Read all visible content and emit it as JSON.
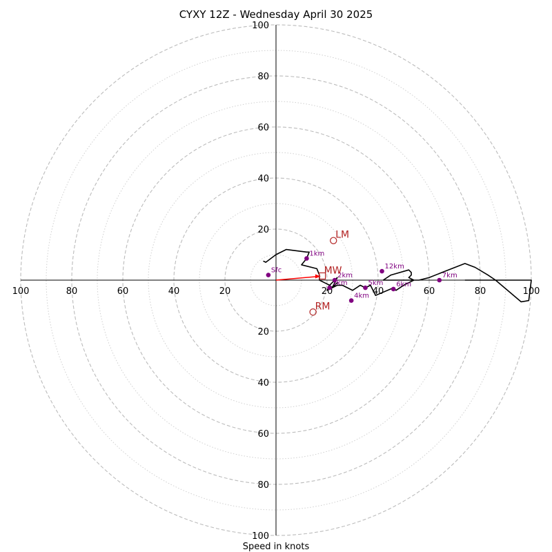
{
  "chart_data": {
    "type": "hodograph",
    "title": "CYXY 12Z - Wednesday April 30 2025",
    "xlabel": "Speed in knots",
    "range": [
      -100,
      100
    ],
    "tick_labels": {
      "left": [
        "100",
        "80",
        "60",
        "40",
        "20"
      ],
      "right": [
        "20",
        "40",
        "60",
        "80",
        "100"
      ],
      "top": [
        "100",
        "80",
        "60",
        "40",
        "20"
      ],
      "bottom": [
        "20",
        "40",
        "60",
        "80",
        "100"
      ]
    },
    "tick_values": [
      20,
      40,
      60,
      80,
      100
    ],
    "major_rings": [
      20,
      40,
      60,
      80,
      100
    ],
    "minor_rings": [
      10,
      30,
      50,
      70,
      90
    ],
    "grid": true,
    "hodograph_line": [
      [
        -5,
        7.5
      ],
      [
        -4,
        7
      ],
      [
        0,
        10
      ],
      [
        4,
        12
      ],
      [
        12,
        11
      ],
      [
        13,
        11
      ],
      [
        12,
        8.5
      ],
      [
        10,
        6
      ],
      [
        16,
        4.5
      ],
      [
        17,
        2
      ],
      [
        17,
        0
      ],
      [
        19,
        -1
      ],
      [
        21,
        -2
      ],
      [
        22,
        -1
      ],
      [
        23,
        0
      ],
      [
        24,
        1
      ],
      [
        22,
        -3
      ],
      [
        24,
        -1
      ],
      [
        23,
        -2
      ],
      [
        20,
        -4
      ],
      [
        21,
        -2
      ],
      [
        22,
        -3
      ],
      [
        24,
        -2
      ],
      [
        26,
        -2
      ],
      [
        30,
        -4
      ],
      [
        33,
        -2
      ],
      [
        35,
        -3
      ],
      [
        37,
        -2
      ],
      [
        39,
        -6
      ],
      [
        46,
        -3
      ],
      [
        47,
        -4
      ],
      [
        50,
        -2
      ],
      [
        52,
        -1
      ],
      [
        54,
        0
      ],
      [
        52,
        1
      ],
      [
        53,
        2
      ],
      [
        53,
        3
      ],
      [
        52,
        4
      ],
      [
        45,
        2
      ],
      [
        42,
        0
      ],
      [
        48,
        0
      ],
      [
        56,
        0
      ],
      [
        60,
        1
      ],
      [
        65,
        3
      ],
      [
        74,
        6.5
      ],
      [
        78,
        5
      ],
      [
        83,
        2
      ],
      [
        86,
        0
      ],
      [
        100,
        0
      ],
      [
        99,
        -8
      ],
      [
        96,
        -8.5
      ],
      [
        86,
        0
      ],
      [
        74,
        0
      ]
    ],
    "height_markers": [
      {
        "label": "Sfc",
        "u": -3,
        "v": 2
      },
      {
        "label": "1km",
        "u": 12,
        "v": 8.5
      },
      {
        "label": "2km",
        "u": 23,
        "v": 0
      },
      {
        "label": "3km",
        "u": 21,
        "v": -3
      },
      {
        "label": "4km",
        "u": 29.5,
        "v": -8
      },
      {
        "label": "5km",
        "u": 35,
        "v": -3
      },
      {
        "label": "6km",
        "u": 46,
        "v": -3.5
      },
      {
        "label": "7km",
        "u": 64,
        "v": 0
      },
      {
        "label": "12km",
        "u": 41.5,
        "v": 3.5
      }
    ],
    "storm_motions": [
      {
        "label": "LM",
        "u": 22.5,
        "v": 15.5
      },
      {
        "label": "MW",
        "u": 18,
        "v": 1.5
      },
      {
        "label": "RM",
        "u": 14.5,
        "v": -12.5
      }
    ],
    "shear_vector": {
      "from": [
        0,
        0
      ],
      "to": [
        17,
        1.5
      ]
    },
    "colors": {
      "hodograph": "#000000",
      "markers": "#800080",
      "storm_motion": "#b22222",
      "shear_vector": "#ff0000",
      "grid": "#bbbbbb"
    }
  }
}
